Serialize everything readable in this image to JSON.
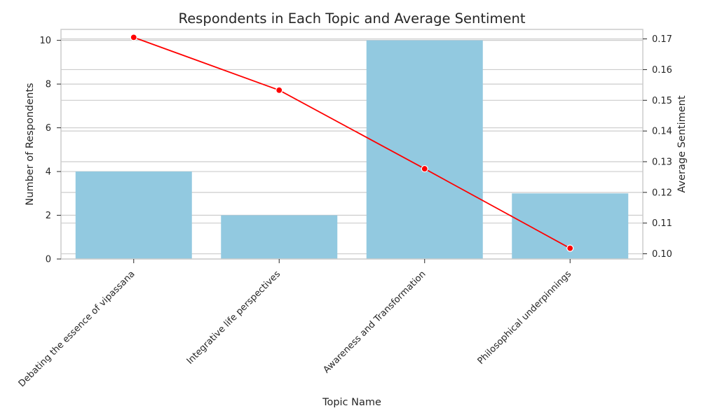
{
  "chart_data": {
    "type": "bar",
    "title": "Respondents in Each Topic and Average Sentiment",
    "xlabel": "Topic Name",
    "ylabel": "Number of Respondents",
    "y2label": "Average Sentiment",
    "categories": [
      "Debating the essence of vipassana",
      "Integrative life perspectives",
      "Awareness and Transformation",
      "Philosophical underpinnings"
    ],
    "series": [
      {
        "type": "bar",
        "axis": "left",
        "values": [
          4,
          2,
          10,
          3
        ],
        "color": "#92c9e0"
      },
      {
        "type": "line",
        "axis": "right",
        "values": [
          0.1705,
          0.1533,
          0.1277,
          0.1018
        ],
        "color": "#ff0000",
        "marker": "circle"
      }
    ],
    "ylim": [
      0,
      10.5
    ],
    "y2lim": [
      0.0983,
      0.1731
    ],
    "yticks": [
      0,
      2,
      4,
      6,
      8,
      10
    ],
    "y2ticks": [
      0.1,
      0.11,
      0.12,
      0.13,
      0.14,
      0.15,
      0.16,
      0.17
    ],
    "y2tick_labels": [
      "0.10",
      "0.11",
      "0.12",
      "0.13",
      "0.14",
      "0.15",
      "0.16",
      "0.17"
    ],
    "grid": true,
    "colors": {
      "grid": "#cccccc",
      "spine": "#cccccc",
      "text": "#262626"
    }
  }
}
